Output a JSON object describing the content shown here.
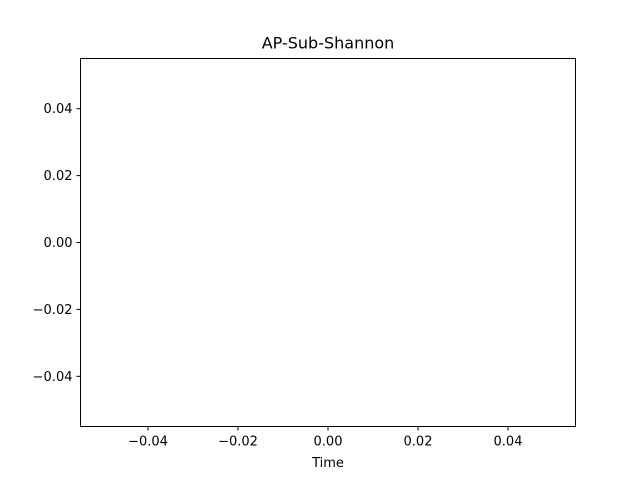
{
  "chart_data": {
    "type": "line",
    "title": "AP-Sub-Shannon",
    "xlabel": "Time",
    "ylabel": "",
    "xlim": [
      -0.055,
      0.055
    ],
    "ylim": [
      -0.055,
      0.055
    ],
    "xticks": [
      -0.04,
      -0.02,
      0.0,
      0.02,
      0.04
    ],
    "xtick_labels": [
      "−0.04",
      "−0.02",
      "0.00",
      "0.02",
      "0.04"
    ],
    "yticks": [
      -0.04,
      -0.02,
      0.0,
      0.02,
      0.04
    ],
    "ytick_labels": [
      "−0.04",
      "−0.02",
      "0.00",
      "0.02",
      "0.04"
    ],
    "grid": false,
    "series": []
  }
}
